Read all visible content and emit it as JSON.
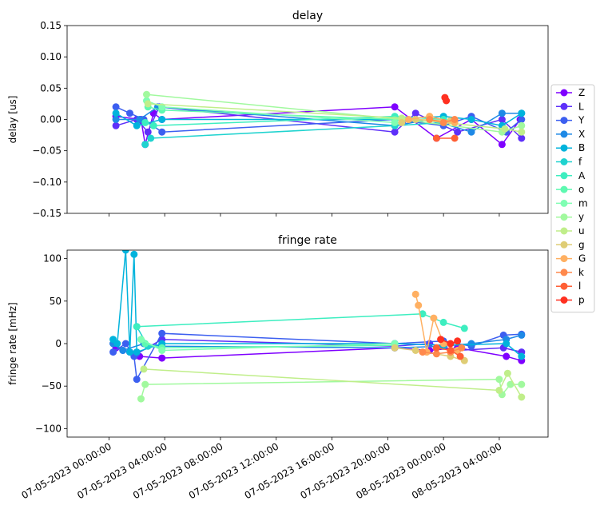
{
  "chart_data": [
    {
      "type": "line",
      "title": "delay",
      "ylabel": "delay [us]",
      "ylim": [
        -0.15,
        0.15
      ],
      "yticks": [
        -0.15,
        -0.1,
        -0.05,
        0.0,
        0.05,
        0.1,
        0.15
      ],
      "ytick_labels": [
        "−0.15",
        "−0.10",
        "−0.05",
        "0.00",
        "0.05",
        "0.10",
        "0.15"
      ],
      "series": [
        {
          "name": "Z",
          "values": [
            [
              0.5,
              0.005
            ],
            [
              2.3,
              0.0
            ],
            [
              2.6,
              -0.04
            ],
            [
              3.2,
              0.01
            ],
            [
              3.8,
              0.0
            ],
            [
              20.5,
              0.02
            ],
            [
              23.5,
              -0.03
            ],
            [
              26,
              0.0
            ],
            [
              28.2,
              -0.04
            ],
            [
              29.5,
              0.0
            ]
          ]
        },
        {
          "name": "L",
          "values": [
            [
              0.5,
              -0.01
            ],
            [
              2.0,
              0.0
            ],
            [
              2.8,
              -0.02
            ],
            [
              3.6,
              0.02
            ],
            [
              20.5,
              -0.02
            ],
            [
              22,
              0.01
            ],
            [
              25,
              -0.02
            ],
            [
              28.2,
              0.0
            ],
            [
              29.6,
              -0.03
            ]
          ]
        },
        {
          "name": "Y",
          "values": [
            [
              0.5,
              0.02
            ],
            [
              1.5,
              0.01
            ],
            [
              2.5,
              0.0
            ],
            [
              3.8,
              -0.02
            ],
            [
              20.5,
              0.0
            ],
            [
              24,
              -0.01
            ],
            [
              26,
              0.005
            ],
            [
              28.5,
              -0.02
            ],
            [
              29.6,
              0.0
            ]
          ]
        },
        {
          "name": "X",
          "values": [
            [
              0.5,
              0.0
            ],
            [
              2.2,
              0.0
            ],
            [
              3.5,
              0.02
            ],
            [
              20.5,
              -0.01
            ],
            [
              23,
              0.0
            ],
            [
              26,
              -0.02
            ],
            [
              28.2,
              0.01
            ],
            [
              29.6,
              0.01
            ]
          ]
        },
        {
          "name": "B",
          "values": [
            [
              0.5,
              0.01
            ],
            [
              2.0,
              -0.01
            ],
            [
              3.8,
              0.0
            ],
            [
              20.5,
              0.0
            ],
            [
              24,
              0.005
            ],
            [
              26,
              0.0
            ],
            [
              28.2,
              -0.01
            ],
            [
              29.6,
              0.01
            ]
          ]
        },
        {
          "name": "f",
          "values": [
            [
              2.6,
              -0.04
            ],
            [
              3.0,
              -0.03
            ],
            [
              20.5,
              -0.01
            ],
            [
              24,
              -0.005
            ]
          ]
        },
        {
          "name": "A",
          "values": [
            [
              2.6,
              -0.005
            ],
            [
              3.2,
              -0.01
            ],
            [
              20.5,
              0.005
            ],
            [
              24,
              0.0
            ]
          ]
        },
        {
          "name": "o",
          "values": [
            [
              2.8,
              0.02
            ],
            [
              3.8,
              0.015
            ],
            [
              20.5,
              0.0
            ]
          ]
        },
        {
          "name": "m",
          "values": [
            [
              2.7,
              0.03
            ],
            [
              3.8,
              0.02
            ],
            [
              20.5,
              -0.005
            ]
          ]
        },
        {
          "name": "y",
          "values": [
            [
              2.7,
              0.04
            ],
            [
              21.0,
              0.0
            ],
            [
              28.2,
              -0.02
            ],
            [
              29.6,
              -0.01
            ]
          ]
        },
        {
          "name": "u",
          "values": [
            [
              2.8,
              0.025
            ],
            [
              21.0,
              0.002
            ],
            [
              28.4,
              -0.015
            ],
            [
              29.6,
              -0.02
            ]
          ]
        },
        {
          "name": "g",
          "values": [
            [
              21.0,
              -0.005
            ],
            [
              22,
              0.0
            ],
            [
              24.5,
              -0.002
            ]
          ]
        },
        {
          "name": "G",
          "values": [
            [
              21.5,
              0.0
            ],
            [
              23,
              0.005
            ],
            [
              24.8,
              -0.005
            ]
          ]
        },
        {
          "name": "k",
          "values": [
            [
              23.0,
              0.0
            ],
            [
              24,
              -0.005
            ],
            [
              24.8,
              0.0
            ]
          ]
        },
        {
          "name": "l",
          "values": [
            [
              23.5,
              -0.03
            ],
            [
              24.8,
              -0.03
            ]
          ]
        },
        {
          "name": "p",
          "values": [
            [
              24.1,
              0.035
            ],
            [
              24.2,
              0.03
            ]
          ]
        }
      ]
    },
    {
      "type": "line",
      "title": "fringe rate",
      "ylabel": "fringe rate [mHz]",
      "ylim": [
        -110,
        110
      ],
      "yticks": [
        -100,
        -50,
        0,
        50,
        100
      ],
      "ytick_labels": [
        "−100",
        "−50",
        "0",
        "50",
        "100"
      ],
      "xlim": [
        -3.0,
        31.5
      ],
      "xticks": [
        0,
        4,
        8,
        12,
        16,
        20,
        24,
        28
      ],
      "xtick_labels": [
        "07-05-2023 00:00:00",
        "07-05-2023 04:00:00",
        "07-05-2023 08:00:00",
        "07-05-2023 12:00:00",
        "07-05-2023 16:00:00",
        "07-05-2023 20:00:00",
        "08-05-2023 00:00:00",
        "08-05-2023 04:00:00"
      ],
      "series": [
        {
          "name": "Z",
          "values": [
            [
              0.5,
              -5
            ],
            [
              1.5,
              -10
            ],
            [
              2.2,
              -15
            ],
            [
              3.8,
              -17
            ],
            [
              20.5,
              -5
            ],
            [
              23,
              -8
            ],
            [
              25,
              -5
            ],
            [
              28.5,
              -15
            ],
            [
              29.6,
              -20
            ]
          ]
        },
        {
          "name": "L",
          "values": [
            [
              0.3,
              0
            ],
            [
              1.0,
              -8
            ],
            [
              2.0,
              -12
            ],
            [
              3.8,
              5
            ],
            [
              20.5,
              -3
            ],
            [
              23,
              0
            ],
            [
              25,
              -8
            ],
            [
              28.3,
              -5
            ],
            [
              29.6,
              -10
            ]
          ]
        },
        {
          "name": "Y",
          "values": [
            [
              0.3,
              -10
            ],
            [
              1.2,
              0
            ],
            [
              1.8,
              -15
            ],
            [
              2.0,
              -42
            ],
            [
              3.8,
              12
            ],
            [
              20.5,
              0
            ],
            [
              24,
              3
            ],
            [
              26,
              -3
            ],
            [
              28.3,
              10
            ],
            [
              29.6,
              11
            ]
          ]
        },
        {
          "name": "X",
          "values": [
            [
              0.3,
              0
            ],
            [
              1.0,
              -8
            ],
            [
              2.5,
              0
            ],
            [
              3.8,
              -3
            ],
            [
              20.5,
              -5
            ],
            [
              24,
              -3
            ],
            [
              26,
              0
            ],
            [
              28.5,
              5
            ],
            [
              29.6,
              10
            ]
          ]
        },
        {
          "name": "B",
          "values": [
            [
              0.3,
              5
            ],
            [
              0.6,
              0
            ],
            [
              1.2,
              110
            ],
            [
              1.5,
              -10
            ],
            [
              1.8,
              105
            ],
            [
              2.0,
              -10
            ],
            [
              3.8,
              0
            ],
            [
              20.5,
              0
            ],
            [
              24,
              -2
            ],
            [
              28.5,
              0
            ],
            [
              29.6,
              -15
            ]
          ]
        },
        {
          "name": "f",
          "values": [
            [
              2.0,
              20
            ],
            [
              2.8,
              -3
            ],
            [
              3.8,
              -5
            ]
          ]
        },
        {
          "name": "A",
          "values": [
            [
              2.0,
              20
            ],
            [
              22.5,
              35
            ],
            [
              24,
              25
            ],
            [
              25.5,
              18
            ]
          ]
        },
        {
          "name": "o",
          "values": [
            [
              2.6,
              0
            ],
            [
              3.8,
              -5
            ],
            [
              20.5,
              -2
            ]
          ]
        },
        {
          "name": "m",
          "values": [
            [
              2.3,
              5
            ],
            [
              3.8,
              -8
            ],
            [
              20.5,
              0
            ]
          ]
        },
        {
          "name": "y",
          "values": [
            [
              2.3,
              -65
            ],
            [
              2.6,
              -48
            ],
            [
              28.0,
              -42
            ],
            [
              28.2,
              -60
            ],
            [
              28.8,
              -48
            ],
            [
              29.6,
              -48
            ]
          ]
        },
        {
          "name": "u",
          "values": [
            [
              2.5,
              -30
            ],
            [
              28.0,
              -55
            ],
            [
              28.6,
              -35
            ],
            [
              29.6,
              -63
            ]
          ]
        },
        {
          "name": "g",
          "values": [
            [
              20.5,
              -5
            ],
            [
              22.0,
              -8
            ],
            [
              24.5,
              -15
            ],
            [
              25.5,
              -20
            ]
          ]
        },
        {
          "name": "G",
          "values": [
            [
              22.0,
              58
            ],
            [
              22.2,
              45
            ],
            [
              22.8,
              -10
            ],
            [
              23.3,
              30
            ],
            [
              24.0,
              0
            ],
            [
              25.0,
              -8
            ]
          ]
        },
        {
          "name": "k",
          "values": [
            [
              22.5,
              -10
            ],
            [
              23.5,
              -12
            ],
            [
              24.5,
              -10
            ],
            [
              25.3,
              -5
            ]
          ]
        },
        {
          "name": "l",
          "values": [
            [
              23.5,
              -5
            ],
            [
              24.5,
              -8
            ],
            [
              25.2,
              -15
            ]
          ]
        },
        {
          "name": "p",
          "values": [
            [
              23.8,
              5
            ],
            [
              24.5,
              0
            ],
            [
              25.0,
              3
            ]
          ]
        }
      ]
    }
  ],
  "legend": {
    "placement": "right",
    "entries": [
      {
        "label": "Z",
        "color": "#7f00ff"
      },
      {
        "label": "L",
        "color": "#5e30f9"
      },
      {
        "label": "Y",
        "color": "#3c5ff0"
      },
      {
        "label": "X",
        "color": "#1e89e6"
      },
      {
        "label": "B",
        "color": "#00b3dc"
      },
      {
        "label": "f",
        "color": "#1fd3cf"
      },
      {
        "label": "A",
        "color": "#3deec0"
      },
      {
        "label": "o",
        "color": "#5ef9b1"
      },
      {
        "label": "m",
        "color": "#80feb3"
      },
      {
        "label": "y",
        "color": "#a1f99e"
      },
      {
        "label": "u",
        "color": "#c0ee8a"
      },
      {
        "label": "g",
        "color": "#dfcd75"
      },
      {
        "label": "G",
        "color": "#ffb062"
      },
      {
        "label": "k",
        "color": "#ff894c"
      },
      {
        "label": "l",
        "color": "#ff5f35"
      },
      {
        "label": "p",
        "color": "#ff3020"
      }
    ]
  }
}
